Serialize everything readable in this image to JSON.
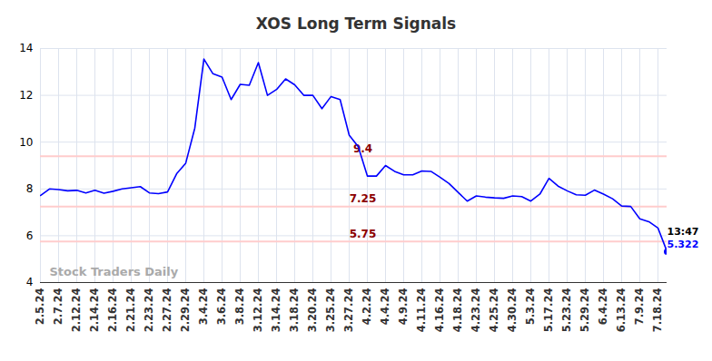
{
  "chart_data": {
    "type": "line",
    "title": "XOS Long Term Signals",
    "categories": [
      "2.5.24",
      null,
      "2.7.24",
      null,
      "2.12.24",
      null,
      "2.14.24",
      null,
      "2.16.24",
      null,
      "2.21.24",
      null,
      "2.23.24",
      null,
      "2.27.24",
      null,
      "2.29.24",
      null,
      "3.4.24",
      null,
      "3.6.24",
      null,
      "3.8.24",
      null,
      "3.12.24",
      null,
      "3.14.24",
      null,
      "3.18.24",
      null,
      "3.20.24",
      null,
      "3.25.24",
      null,
      "3.27.24",
      null,
      "4.2.24",
      null,
      "4.4.24",
      null,
      "4.9.24",
      null,
      "4.11.24",
      null,
      "4.16.24",
      null,
      "4.18.24",
      null,
      "4.23.24",
      null,
      "4.25.24",
      null,
      "4.30.24",
      null,
      "5.3.24",
      null,
      "5.17.24",
      null,
      "5.23.24",
      null,
      "5.29.24",
      null,
      "6.4.24",
      null,
      "6.13.24",
      null,
      "7.9.24",
      null,
      "7.18.24",
      null
    ],
    "values": [
      7.72,
      8.0,
      7.97,
      7.92,
      7.94,
      7.83,
      7.94,
      7.82,
      7.9,
      8.0,
      8.05,
      8.1,
      7.83,
      7.8,
      7.87,
      8.65,
      9.1,
      10.6,
      13.55,
      12.92,
      12.78,
      11.82,
      12.47,
      12.43,
      13.4,
      12.0,
      12.25,
      12.7,
      12.45,
      12.0,
      12.0,
      11.43,
      11.95,
      11.82,
      10.3,
      9.8,
      8.55,
      8.55,
      9.0,
      8.75,
      8.6,
      8.6,
      8.77,
      8.75,
      8.5,
      8.23,
      7.85,
      7.48,
      7.7,
      7.65,
      7.62,
      7.6,
      7.7,
      7.67,
      7.48,
      7.78,
      8.45,
      8.12,
      7.92,
      7.75,
      7.73,
      7.95,
      7.78,
      7.58,
      7.27,
      7.25,
      6.72,
      6.6,
      6.33,
      5.322
    ],
    "color": "#0000ff",
    "ylim": [
      4,
      14
    ],
    "yticks": [
      4,
      6,
      8,
      10,
      12,
      14
    ],
    "grid": true,
    "reference_lines": {
      "values": [
        9.4,
        7.25,
        5.75
      ],
      "color": "#ffcccc",
      "label_color": "#8b0000"
    },
    "last_point_label": {
      "time": "13:47"
    },
    "watermark": "Stock Traders Daily"
  }
}
